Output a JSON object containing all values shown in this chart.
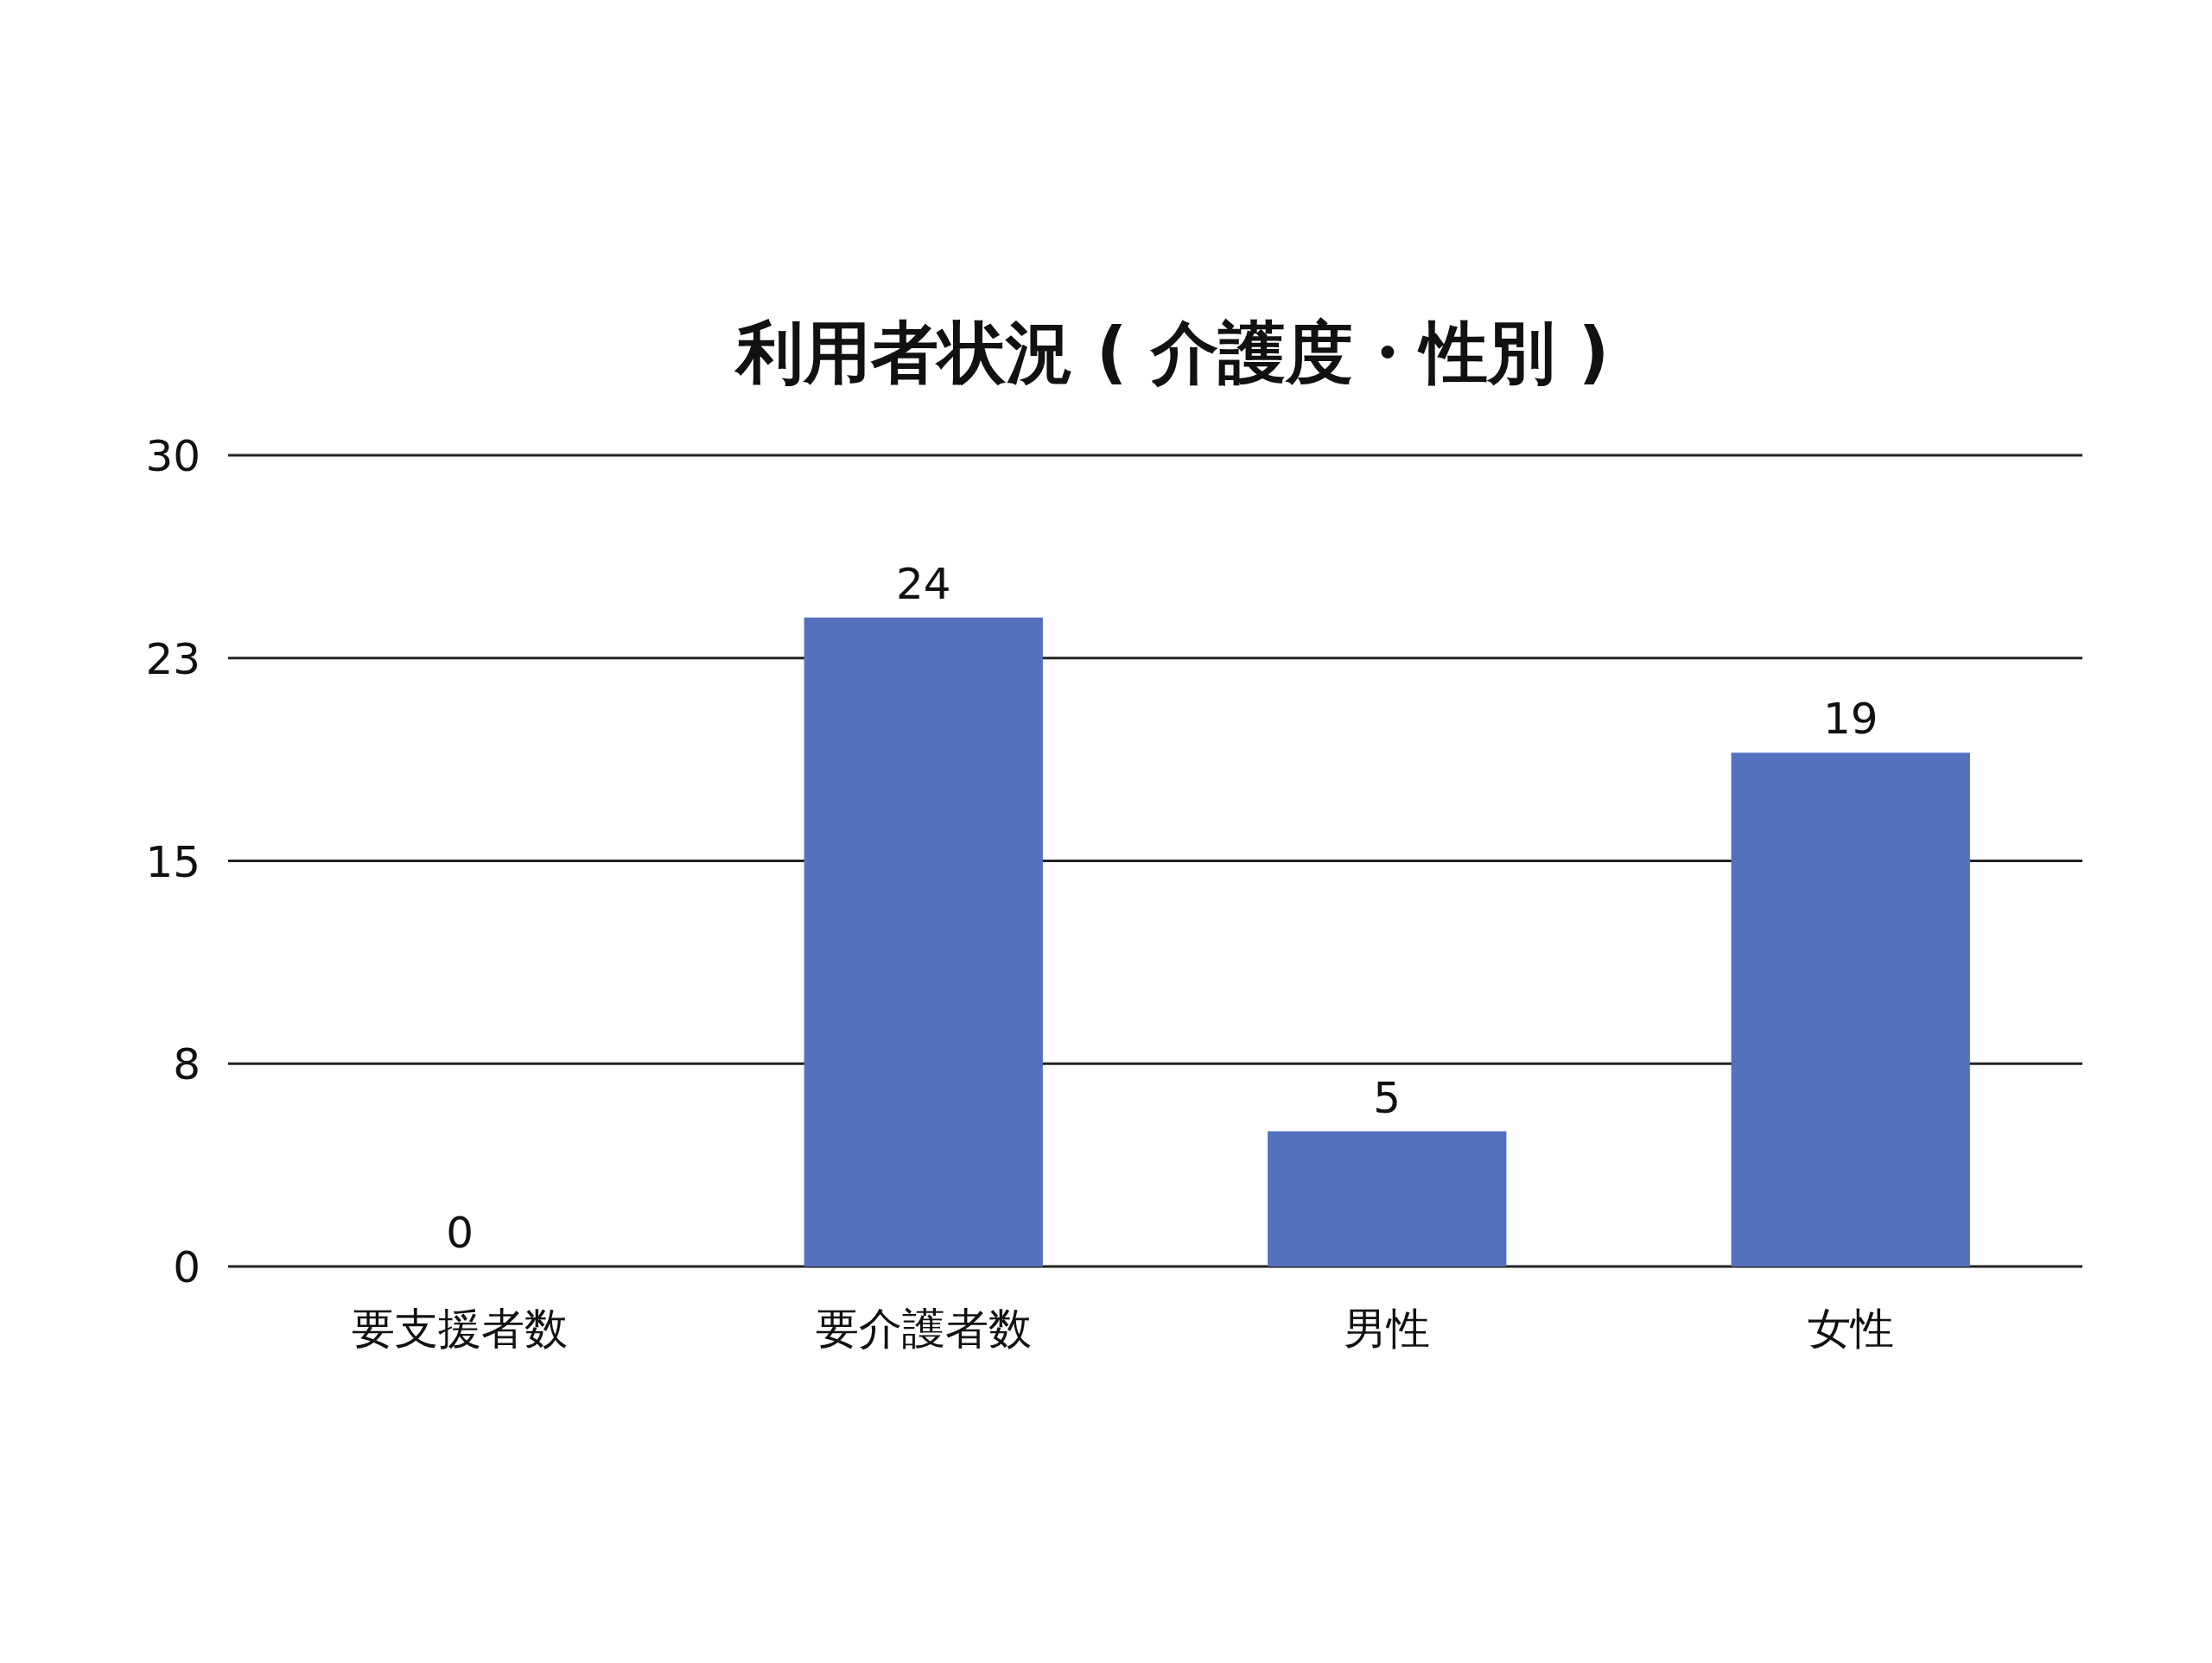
{
  "chart_data": {
    "type": "bar",
    "title": "利用者状況 ( 介護度・性別 )",
    "categories": [
      "要支援者数",
      "要介護者数",
      "男性",
      "女性"
    ],
    "values": [
      0,
      24,
      5,
      19
    ],
    "color": "#5571be",
    "ylim": [
      0,
      30
    ],
    "yticks": [
      0,
      {
        "value": 7.5,
        "label": "8"
      },
      15,
      {
        "value": 22.5,
        "label": "23"
      },
      30
    ],
    "grid": "y",
    "data_labels": true
  }
}
